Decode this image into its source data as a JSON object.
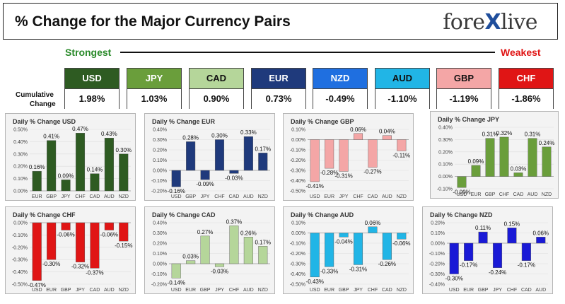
{
  "header": {
    "title": "% Change for the Major Currency Pairs",
    "logo_left": "fore",
    "logo_x": "X",
    "logo_right": "live"
  },
  "scale": {
    "strongest_label": "Strongest",
    "weakest_label": "Weakest",
    "cumulative_label_line1": "Cumulative",
    "cumulative_label_line2": "Change"
  },
  "currencies": [
    {
      "code": "USD",
      "value": "1.98%",
      "color": "#2e5b22",
      "text_color": "#ffffff"
    },
    {
      "code": "JPY",
      "value": "1.03%",
      "color": "#6a9e3b",
      "text_color": "#ffffff"
    },
    {
      "code": "CAD",
      "value": "0.90%",
      "color": "#b5d69a",
      "text_color": "#111111"
    },
    {
      "code": "EUR",
      "value": "0.73%",
      "color": "#1f3a7c",
      "text_color": "#ffffff"
    },
    {
      "code": "NZD",
      "value": "-0.49%",
      "color": "#1f6fe0",
      "text_color": "#ffffff"
    },
    {
      "code": "AUD",
      "value": "-1.10%",
      "color": "#21b5e6",
      "text_color": "#111111"
    },
    {
      "code": "GBP",
      "value": "-1.19%",
      "color": "#f4a6a6",
      "text_color": "#111111"
    },
    {
      "code": "CHF",
      "value": "-1.86%",
      "color": "#e01515",
      "text_color": "#ffffff"
    }
  ],
  "chart_data": [
    {
      "type": "bar",
      "title": "Daily % Change USD",
      "color": "#2e5b22",
      "categories": [
        "EUR",
        "GBP",
        "JPY",
        "CHF",
        "CAD",
        "AUD",
        "NZD"
      ],
      "values": [
        0.16,
        0.41,
        0.09,
        0.47,
        0.14,
        0.43,
        0.3
      ],
      "labels": [
        "0.16%",
        "0.41%",
        "0.09%",
        "0.47%",
        "0.14%",
        "0.43%",
        "0.30%"
      ],
      "yticks": [
        "0.50%",
        "0.40%",
        "0.30%",
        "0.20%",
        "0.10%",
        "0.00%"
      ],
      "ylim": [
        0,
        0.5
      ]
    },
    {
      "type": "bar",
      "title": "Daily % Change EUR",
      "color": "#1f3a7c",
      "categories": [
        "USD",
        "GBP",
        "JPY",
        "CHF",
        "CAD",
        "AUD",
        "NZD"
      ],
      "values": [
        -0.16,
        0.28,
        -0.09,
        0.3,
        -0.03,
        0.33,
        0.17
      ],
      "labels": [
        "-0.16%",
        "0.28%",
        "-0.09%",
        "0.30%",
        "-0.03%",
        "0.33%",
        "0.17%"
      ],
      "yticks": [
        "0.40%",
        "0.30%",
        "0.20%",
        "0.10%",
        "0.00%",
        "-0.10%",
        "-0.20%"
      ],
      "ylim": [
        -0.2,
        0.4
      ]
    },
    {
      "type": "bar",
      "title": "Daily % Change GBP",
      "color": "#f4a6a6",
      "categories": [
        "USD",
        "EUR",
        "JPY",
        "CHF",
        "CAD",
        "AUD",
        "NZD"
      ],
      "values": [
        -0.41,
        -0.28,
        -0.31,
        0.06,
        -0.27,
        0.04,
        -0.11
      ],
      "labels": [
        "-0.41%",
        "-0.28%",
        "-0.31%",
        "0.06%",
        "-0.27%",
        "0.04%",
        "-0.11%"
      ],
      "yticks": [
        "0.10%",
        "0.00%",
        "-0.10%",
        "-0.20%",
        "-0.30%",
        "-0.40%",
        "-0.50%"
      ],
      "ylim": [
        -0.5,
        0.1
      ]
    },
    {
      "type": "bar",
      "title": "Daily % Change JPY",
      "color": "#6a9e3b",
      "categories": [
        "USD",
        "EUR",
        "GBP",
        "CHF",
        "CAD",
        "AUD",
        "NZD"
      ],
      "values": [
        -0.09,
        0.09,
        0.31,
        0.32,
        0.03,
        0.31,
        0.24
      ],
      "labels": [
        "-0.09%",
        "0.09%",
        "0.31%",
        "0.32%",
        "0.03%",
        "0.31%",
        "0.24%"
      ],
      "yticks": [
        "0.40%",
        "0.30%",
        "0.20%",
        "0.10%",
        "0.00%",
        "-0.10%"
      ],
      "ylim": [
        -0.1,
        0.4
      ]
    },
    {
      "type": "bar",
      "title": "Daily % Change CHF",
      "color": "#e01515",
      "categories": [
        "USD",
        "EUR",
        "GBP",
        "JPY",
        "CAD",
        "AUD",
        "NZD"
      ],
      "values": [
        -0.47,
        -0.3,
        -0.06,
        -0.32,
        -0.37,
        -0.06,
        -0.15
      ],
      "labels": [
        "-0.47%",
        "-0.30%",
        "-0.06%",
        "-0.32%",
        "-0.37%",
        "-0.06%",
        "-0.15%"
      ],
      "yticks": [
        "0.00%",
        "-0.10%",
        "-0.20%",
        "-0.30%",
        "-0.40%",
        "-0.50%"
      ],
      "ylim": [
        -0.5,
        0
      ]
    },
    {
      "type": "bar",
      "title": "Daily % Change CAD",
      "color": "#b5d69a",
      "categories": [
        "USD",
        "EUR",
        "GBP",
        "JPY",
        "CHF",
        "AUD",
        "NZD"
      ],
      "values": [
        -0.14,
        0.03,
        0.27,
        -0.03,
        0.37,
        0.26,
        0.17
      ],
      "labels": [
        "-0.14%",
        "0.03%",
        "0.27%",
        "-0.03%",
        "0.37%",
        "0.26%",
        "0.17%"
      ],
      "yticks": [
        "0.40%",
        "0.30%",
        "0.20%",
        "0.10%",
        "0.00%",
        "-0.10%",
        "-0.20%"
      ],
      "ylim": [
        -0.2,
        0.4
      ]
    },
    {
      "type": "bar",
      "title": "Daily % Change AUD",
      "color": "#21b5e6",
      "categories": [
        "USD",
        "EUR",
        "GBP",
        "JPY",
        "CHF",
        "CAD",
        "NZD"
      ],
      "values": [
        -0.43,
        -0.33,
        -0.04,
        -0.31,
        0.06,
        -0.26,
        -0.06
      ],
      "labels": [
        "-0.43%",
        "-0.33%",
        "-0.04%",
        "-0.31%",
        "0.06%",
        "-0.26%",
        "-0.06%"
      ],
      "yticks": [
        "0.10%",
        "0.00%",
        "-0.10%",
        "-0.20%",
        "-0.30%",
        "-0.40%",
        "-0.50%"
      ],
      "ylim": [
        -0.5,
        0.1
      ]
    },
    {
      "type": "bar",
      "title": "Daily % Change NZD",
      "color": "#1a1ad6",
      "categories": [
        "USD",
        "EUR",
        "GBP",
        "JPY",
        "CHF",
        "CAD",
        "AUD"
      ],
      "values": [
        -0.3,
        -0.17,
        0.11,
        -0.24,
        0.15,
        -0.17,
        0.06
      ],
      "labels": [
        "-0.30%",
        "-0.17%",
        "0.11%",
        "-0.24%",
        "0.15%",
        "-0.17%",
        "0.06%"
      ],
      "yticks": [
        "0.20%",
        "0.10%",
        "0.00%",
        "-0.10%",
        "-0.20%",
        "-0.30%",
        "-0.40%"
      ],
      "ylim": [
        -0.4,
        0.2
      ]
    }
  ]
}
